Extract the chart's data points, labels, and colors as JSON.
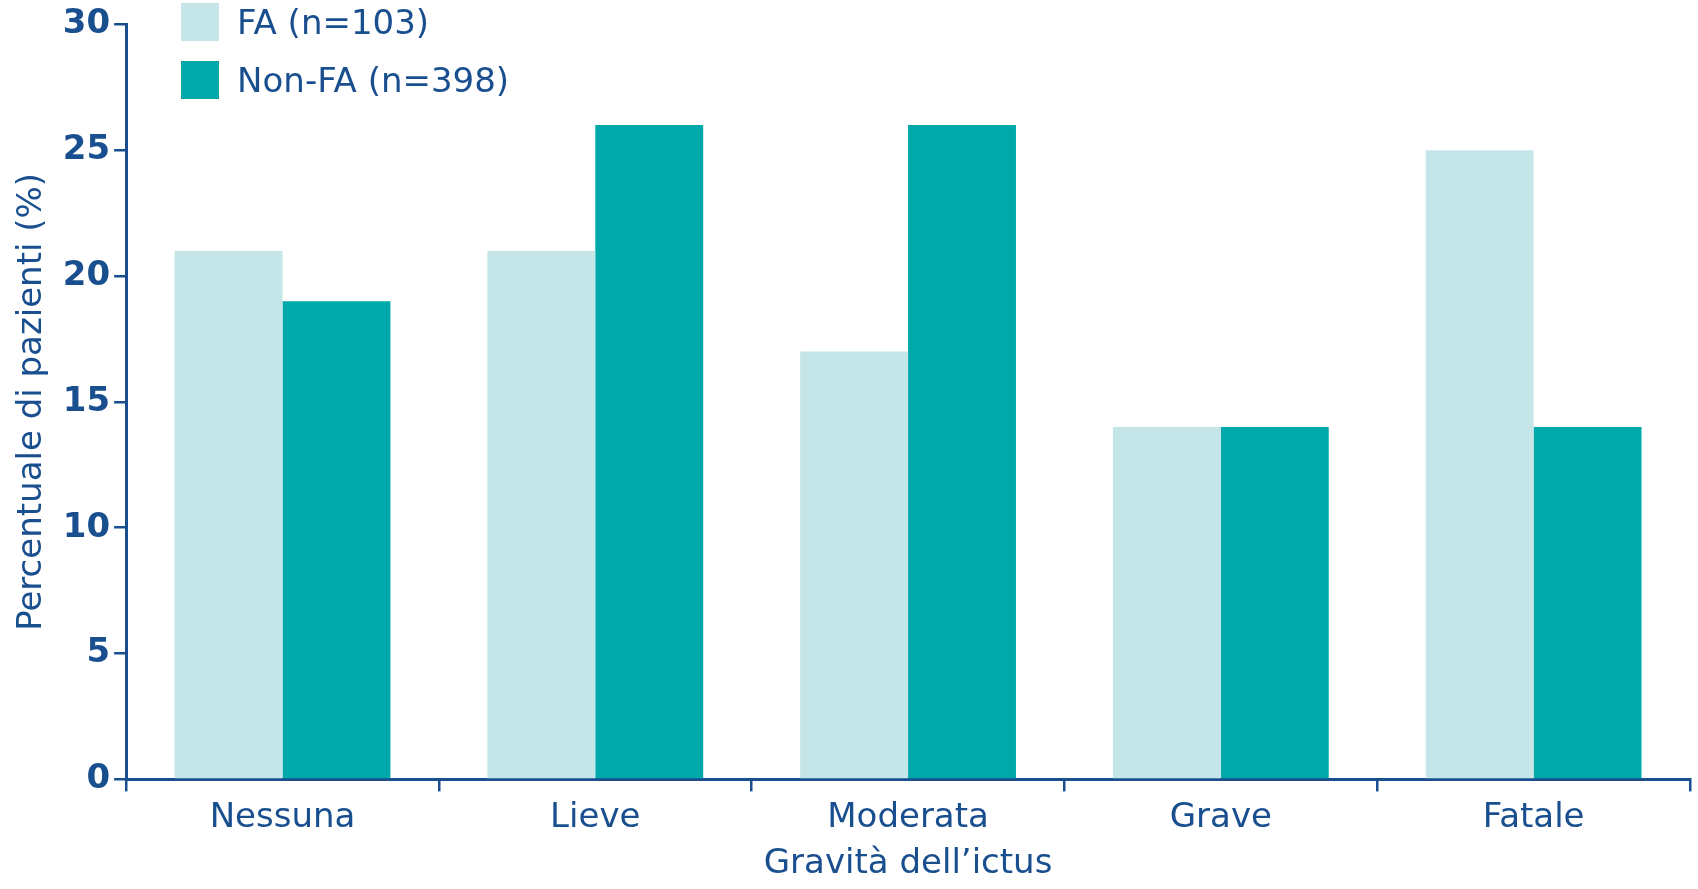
{
  "chart_data": {
    "type": "bar",
    "xlabel": "Gravità dell’ictus",
    "ylabel": "Percentuale di pazienti (%)",
    "categories": [
      "Nessuna",
      "Lieve",
      "Moderata",
      "Grave",
      "Fatale"
    ],
    "series": [
      {
        "name": "FA (n=103)",
        "color": "#c5e6e8",
        "values": [
          21,
          21,
          17,
          14,
          25
        ]
      },
      {
        "name": "Non-FA (n=398)",
        "color": "#00a9a9",
        "values": [
          19,
          26,
          26,
          14,
          14
        ]
      }
    ],
    "ylim": [
      0,
      30
    ],
    "yticks": [
      0,
      5,
      10,
      15,
      20,
      25,
      30
    ],
    "grid": false,
    "legend": "top left"
  }
}
